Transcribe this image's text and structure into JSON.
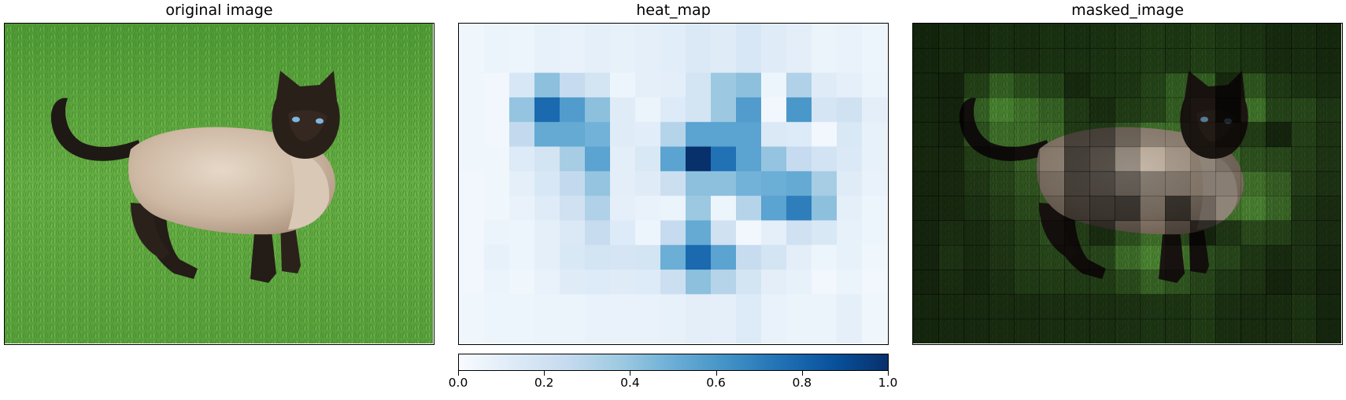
{
  "panels": {
    "original": {
      "title": "original image"
    },
    "heatmap": {
      "title": "heat_map"
    },
    "masked": {
      "title": "masked_image"
    }
  },
  "chart_data": {
    "type": "heatmap",
    "colormap": "Blues",
    "colorbar": {
      "orientation": "horizontal",
      "range": [
        0.0,
        1.0
      ],
      "ticks": [
        0.0,
        0.2,
        0.4,
        0.6,
        0.8,
        1.0
      ],
      "tick_labels": [
        "0.0",
        "0.2",
        "0.4",
        "0.6",
        "0.8",
        "1.0"
      ]
    },
    "grid_shape": [
      13,
      17
    ],
    "values": [
      [
        0.04,
        0.06,
        0.05,
        0.08,
        0.07,
        0.09,
        0.08,
        0.09,
        0.11,
        0.14,
        0.12,
        0.16,
        0.12,
        0.1,
        0.06,
        0.07,
        0.05
      ],
      [
        0.04,
        0.06,
        0.05,
        0.08,
        0.07,
        0.09,
        0.08,
        0.09,
        0.11,
        0.14,
        0.12,
        0.16,
        0.12,
        0.1,
        0.06,
        0.07,
        0.05
      ],
      [
        0.04,
        0.03,
        0.16,
        0.42,
        0.25,
        0.18,
        0.05,
        0.09,
        0.1,
        0.18,
        0.38,
        0.42,
        0.05,
        0.32,
        0.12,
        0.09,
        0.06
      ],
      [
        0.04,
        0.03,
        0.4,
        0.78,
        0.58,
        0.42,
        0.12,
        0.06,
        0.13,
        0.18,
        0.38,
        0.58,
        0.03,
        0.6,
        0.17,
        0.2,
        0.1
      ],
      [
        0.04,
        0.03,
        0.26,
        0.52,
        0.52,
        0.48,
        0.12,
        0.11,
        0.3,
        0.55,
        0.55,
        0.55,
        0.14,
        0.13,
        0.03,
        0.15,
        0.08
      ],
      [
        0.04,
        0.04,
        0.13,
        0.18,
        0.35,
        0.55,
        0.1,
        0.15,
        0.55,
        1.0,
        0.75,
        0.55,
        0.4,
        0.25,
        0.19,
        0.14,
        0.08
      ],
      [
        0.03,
        0.04,
        0.09,
        0.16,
        0.26,
        0.4,
        0.1,
        0.12,
        0.22,
        0.42,
        0.42,
        0.48,
        0.5,
        0.52,
        0.35,
        0.12,
        0.07
      ],
      [
        0.03,
        0.04,
        0.07,
        0.12,
        0.2,
        0.32,
        0.09,
        0.07,
        0.06,
        0.38,
        0.05,
        0.3,
        0.55,
        0.7,
        0.42,
        0.09,
        0.05
      ],
      [
        0.03,
        0.06,
        0.05,
        0.09,
        0.14,
        0.24,
        0.13,
        0.05,
        0.25,
        0.52,
        0.2,
        0.03,
        0.09,
        0.2,
        0.15,
        0.08,
        0.05
      ],
      [
        0.03,
        0.08,
        0.05,
        0.09,
        0.15,
        0.18,
        0.17,
        0.18,
        0.5,
        0.78,
        0.55,
        0.24,
        0.18,
        0.1,
        0.05,
        0.08,
        0.04
      ],
      [
        0.03,
        0.06,
        0.04,
        0.07,
        0.12,
        0.13,
        0.12,
        0.13,
        0.22,
        0.42,
        0.3,
        0.18,
        0.1,
        0.08,
        0.03,
        0.06,
        0.03
      ],
      [
        0.04,
        0.05,
        0.05,
        0.06,
        0.06,
        0.07,
        0.07,
        0.07,
        0.08,
        0.1,
        0.09,
        0.13,
        0.07,
        0.06,
        0.06,
        0.09,
        0.04
      ],
      [
        0.04,
        0.05,
        0.05,
        0.06,
        0.06,
        0.07,
        0.07,
        0.07,
        0.08,
        0.1,
        0.09,
        0.13,
        0.07,
        0.06,
        0.06,
        0.09,
        0.04
      ]
    ]
  },
  "colors": {
    "grass_light": "#5fa63f",
    "grass_dark": "#2f6d1f",
    "cat_body": "#c8b4a0",
    "cat_dark": "#1c1613"
  }
}
